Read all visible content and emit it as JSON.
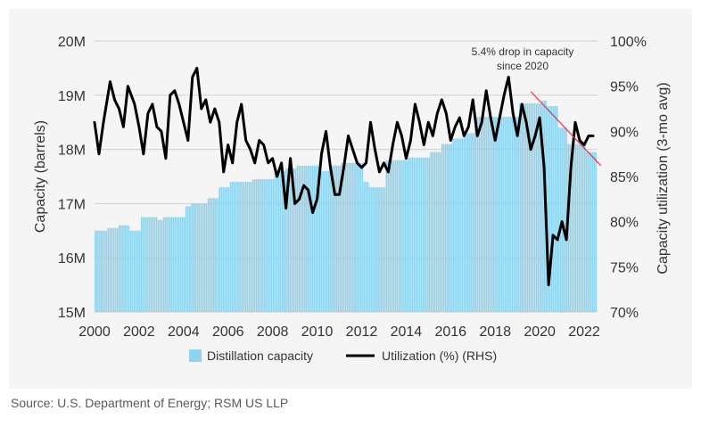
{
  "chart_data": {
    "type": "bar",
    "title": "",
    "xlabel": "",
    "ylabel": "Capacity (barrels)",
    "ylabel_right": "Capacity utilization (3-mo avg)",
    "xlim": [
      2000,
      2022.6
    ],
    "ylim": [
      15,
      20
    ],
    "ylim_right": [
      70,
      100
    ],
    "x_ticks": [
      2000,
      2002,
      2004,
      2006,
      2008,
      2010,
      2012,
      2014,
      2016,
      2018,
      2020,
      2022
    ],
    "x_tick_labels": [
      "2000",
      "2002",
      "2004",
      "2006",
      "2008",
      "2010",
      "2012",
      "2014",
      "2016",
      "2018",
      "2020",
      "2022"
    ],
    "y_tick_labels": [
      "15M",
      "16M",
      "17M",
      "18M",
      "19M",
      "20M"
    ],
    "y_right_tick_labels": [
      "70%",
      "75%",
      "80%",
      "85%",
      "90%",
      "95%",
      "100%"
    ],
    "grid": true,
    "legend_position": "bottom",
    "annotation": {
      "text_line1": "5.4% drop in capacity",
      "text_line2": "since 2020",
      "arrow_from": [
        2019.6,
        94.4
      ],
      "arrow_to": [
        2022.75,
        86.2
      ],
      "color": "#e8304a"
    },
    "colors": {
      "bars": "#8fd3ec",
      "line": "#000000",
      "grid": "#d0d0d0",
      "background": "#f5f5f5",
      "text": "#333333"
    },
    "series": [
      {
        "name": "Distillation capacity",
        "type": "bar",
        "axis": "left",
        "steps": [
          [
            2000.0,
            16.5
          ],
          [
            2000.5,
            16.55
          ],
          [
            2001.0,
            16.6
          ],
          [
            2001.5,
            16.5
          ],
          [
            2002.0,
            16.75
          ],
          [
            2002.8,
            16.7
          ],
          [
            2003.0,
            16.75
          ],
          [
            2004.0,
            16.95
          ],
          [
            2004.3,
            17.0
          ],
          [
            2005.0,
            17.1
          ],
          [
            2005.5,
            17.3
          ],
          [
            2006.0,
            17.4
          ],
          [
            2007.0,
            17.45
          ],
          [
            2008.0,
            17.6
          ],
          [
            2008.5,
            17.65
          ],
          [
            2009.0,
            17.7
          ],
          [
            2010.0,
            17.6
          ],
          [
            2010.6,
            17.7
          ],
          [
            2011.0,
            17.75
          ],
          [
            2012.0,
            17.4
          ],
          [
            2012.3,
            17.3
          ],
          [
            2013.0,
            17.8
          ],
          [
            2014.0,
            17.85
          ],
          [
            2015.0,
            17.95
          ],
          [
            2015.5,
            18.1
          ],
          [
            2016.0,
            18.2
          ],
          [
            2016.5,
            18.3
          ],
          [
            2017.0,
            18.6
          ],
          [
            2018.0,
            18.6
          ],
          [
            2019.0,
            18.85
          ],
          [
            2020.0,
            18.9
          ],
          [
            2020.3,
            18.8
          ],
          [
            2020.8,
            18.4
          ],
          [
            2021.2,
            18.1
          ],
          [
            2022.0,
            17.95
          ]
        ]
      },
      {
        "name": "Utilization (%) (RHS)",
        "type": "line",
        "axis": "right",
        "points": [
          [
            2000.0,
            91
          ],
          [
            2000.2,
            87.5
          ],
          [
            2000.4,
            91
          ],
          [
            2000.7,
            95.5
          ],
          [
            2000.9,
            93.5
          ],
          [
            2001.1,
            92.5
          ],
          [
            2001.3,
            90.5
          ],
          [
            2001.5,
            95
          ],
          [
            2001.8,
            93
          ],
          [
            2002.0,
            90.5
          ],
          [
            2002.2,
            87.5
          ],
          [
            2002.4,
            92
          ],
          [
            2002.6,
            93
          ],
          [
            2002.8,
            90.5
          ],
          [
            2003.0,
            90
          ],
          [
            2003.2,
            87
          ],
          [
            2003.4,
            94
          ],
          [
            2003.6,
            94.5
          ],
          [
            2003.8,
            93
          ],
          [
            2004.0,
            91
          ],
          [
            2004.2,
            89
          ],
          [
            2004.4,
            96
          ],
          [
            2004.6,
            97
          ],
          [
            2004.8,
            92.5
          ],
          [
            2005.0,
            93.5
          ],
          [
            2005.2,
            91
          ],
          [
            2005.4,
            92.5
          ],
          [
            2005.6,
            91
          ],
          [
            2005.8,
            85.5
          ],
          [
            2006.0,
            88.5
          ],
          [
            2006.2,
            86.5
          ],
          [
            2006.4,
            91
          ],
          [
            2006.6,
            93
          ],
          [
            2006.8,
            89
          ],
          [
            2007.0,
            88
          ],
          [
            2007.2,
            86.5
          ],
          [
            2007.4,
            89
          ],
          [
            2007.6,
            88.5
          ],
          [
            2007.8,
            86.5
          ],
          [
            2008.0,
            87
          ],
          [
            2008.2,
            85
          ],
          [
            2008.4,
            86.5
          ],
          [
            2008.6,
            81.5
          ],
          [
            2008.8,
            87
          ],
          [
            2009.0,
            82
          ],
          [
            2009.2,
            82.5
          ],
          [
            2009.4,
            84
          ],
          [
            2009.6,
            83.5
          ],
          [
            2009.8,
            81
          ],
          [
            2010.0,
            82.5
          ],
          [
            2010.2,
            87.5
          ],
          [
            2010.4,
            90
          ],
          [
            2010.6,
            86
          ],
          [
            2010.8,
            83
          ],
          [
            2011.0,
            83
          ],
          [
            2011.2,
            86
          ],
          [
            2011.4,
            89.5
          ],
          [
            2011.6,
            88
          ],
          [
            2011.8,
            86.5
          ],
          [
            2012.0,
            86
          ],
          [
            2012.2,
            86.5
          ],
          [
            2012.4,
            91
          ],
          [
            2012.6,
            88
          ],
          [
            2012.8,
            85.5
          ],
          [
            2013.0,
            86.5
          ],
          [
            2013.2,
            85.5
          ],
          [
            2013.4,
            88.5
          ],
          [
            2013.6,
            91
          ],
          [
            2013.8,
            89.5
          ],
          [
            2014.0,
            87
          ],
          [
            2014.2,
            89
          ],
          [
            2014.4,
            93
          ],
          [
            2014.6,
            91
          ],
          [
            2014.8,
            88.5
          ],
          [
            2015.0,
            91
          ],
          [
            2015.2,
            89.5
          ],
          [
            2015.4,
            92
          ],
          [
            2015.6,
            93.5
          ],
          [
            2015.8,
            92
          ],
          [
            2016.0,
            89
          ],
          [
            2016.2,
            90.5
          ],
          [
            2016.4,
            91.5
          ],
          [
            2016.6,
            89.5
          ],
          [
            2016.8,
            90.5
          ],
          [
            2017.0,
            93.5
          ],
          [
            2017.2,
            89.5
          ],
          [
            2017.4,
            91
          ],
          [
            2017.6,
            94.5
          ],
          [
            2017.8,
            91.5
          ],
          [
            2018.0,
            89
          ],
          [
            2018.2,
            91.5
          ],
          [
            2018.4,
            94
          ],
          [
            2018.6,
            96
          ],
          [
            2018.8,
            92
          ],
          [
            2019.0,
            89.5
          ],
          [
            2019.2,
            93
          ],
          [
            2019.4,
            91
          ],
          [
            2019.6,
            88
          ],
          [
            2019.8,
            89.5
          ],
          [
            2020.0,
            91.5
          ],
          [
            2020.2,
            86
          ],
          [
            2020.4,
            73
          ],
          [
            2020.6,
            78.5
          ],
          [
            2020.8,
            78
          ],
          [
            2021.0,
            80
          ],
          [
            2021.2,
            78
          ],
          [
            2021.4,
            86
          ],
          [
            2021.6,
            91
          ],
          [
            2021.8,
            89
          ],
          [
            2022.0,
            88.5
          ],
          [
            2022.2,
            89.5
          ],
          [
            2022.4,
            89.5
          ]
        ]
      }
    ],
    "source": "Source: U.S. Department of Energy; RSM US LLP"
  }
}
